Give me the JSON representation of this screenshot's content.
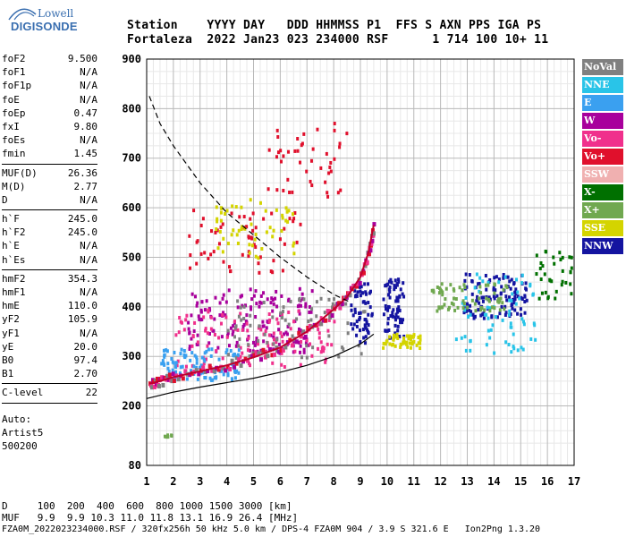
{
  "logo": {
    "line1": "Lowell",
    "line2": "DIGISONDE"
  },
  "header": {
    "line1": "Station    YYYY DAY   DDD HHMMSS P1  FFS S AXN PPS IGA PS",
    "line2": "Fortaleza  2022 Jan23 023 234000 RSF      1 714 100 10+ 11"
  },
  "params_groups": [
    [
      [
        "foF2",
        "9.500"
      ],
      [
        "foF1",
        "N/A"
      ],
      [
        "foF1p",
        "N/A"
      ],
      [
        "foE",
        "N/A"
      ],
      [
        "foEp",
        "0.47"
      ],
      [
        "fxI",
        "9.80"
      ],
      [
        "foEs",
        "N/A"
      ],
      [
        "fmin",
        "1.45"
      ]
    ],
    [
      [
        "MUF(D)",
        "26.36"
      ],
      [
        "M(D)",
        "2.77"
      ],
      [
        "D",
        "N/A"
      ]
    ],
    [
      [
        "h`F",
        "245.0"
      ],
      [
        "h`F2",
        "245.0"
      ],
      [
        "h`E",
        "N/A"
      ],
      [
        "h`Es",
        "N/A"
      ]
    ],
    [
      [
        "hmF2",
        "354.3"
      ],
      [
        "hmF1",
        "N/A"
      ],
      [
        "hmE",
        "110.0"
      ],
      [
        "yF2",
        "105.9"
      ],
      [
        "yF1",
        "N/A"
      ],
      [
        "yE",
        "20.0"
      ],
      [
        "B0",
        "97.4"
      ],
      [
        "B1",
        "2.70"
      ]
    ],
    [
      [
        "C-level",
        "22"
      ]
    ]
  ],
  "auto_lines": [
    "Auto:",
    "Artist5",
    "500200"
  ],
  "legend": [
    {
      "label": "NoVal",
      "color": "#808080"
    },
    {
      "label": "NNE",
      "color": "#29c4e8"
    },
    {
      "label": "E",
      "color": "#3aa0f0"
    },
    {
      "label": "W",
      "color": "#a8009c"
    },
    {
      "label": "Vo-",
      "color": "#f0308c"
    },
    {
      "label": "Vo+",
      "color": "#e0102c"
    },
    {
      "label": "SSW",
      "color": "#f0b0b0"
    },
    {
      "label": "X-",
      "color": "#007000"
    },
    {
      "label": "X+",
      "color": "#70a850"
    },
    {
      "label": "SSE",
      "color": "#d4d400"
    },
    {
      "label": "NNW",
      "color": "#1414a0"
    }
  ],
  "footer": {
    "line1": "D     100  200  400  600  800 1000 1500 3000 [km]",
    "line2": "MUF   9.9  9.9 10.3 11.0 11.8 13.1 16.9 26.4 [MHz]",
    "line3": "FZA0M_2022023234000.RSF / 320fx256h 50 kHz 5.0 km / DPS-4 FZA0M 904 / 3.9 S 321.6 E   Ion2Png 1.3.20"
  },
  "chart_data": {
    "type": "scatter",
    "xlim": [
      1,
      17
    ],
    "ylim": [
      80,
      900
    ],
    "x_ticks": [
      1,
      2,
      3,
      4,
      5,
      6,
      7,
      8,
      9,
      10,
      11,
      12,
      13,
      14,
      15,
      16,
      17
    ],
    "y_ticks": [
      80,
      200,
      300,
      400,
      500,
      600,
      700,
      800,
      900
    ],
    "grid": true,
    "curves": [
      {
        "name": "trace-o",
        "color": "#c0002c",
        "style": "solid",
        "x": [
          1.1,
          1.5,
          2,
          3,
          4,
          5,
          6,
          7,
          8,
          8.5,
          9,
          9.3,
          9.5
        ],
        "y": [
          245,
          250,
          258,
          270,
          282,
          298,
          318,
          350,
          395,
          420,
          460,
          510,
          565
        ]
      },
      {
        "name": "trace-lower",
        "color": "#000000",
        "style": "solid",
        "x": [
          1.0,
          2,
          3,
          4,
          5,
          6,
          7,
          8,
          9,
          9.5
        ],
        "y": [
          215,
          228,
          238,
          247,
          256,
          268,
          282,
          300,
          325,
          345
        ]
      },
      {
        "name": "profile",
        "color": "#000000",
        "style": "dashed",
        "x": [
          1.1,
          1.5,
          2,
          3,
          4,
          5,
          6,
          7,
          8,
          8.6
        ],
        "y": [
          825,
          770,
          725,
          650,
          590,
          545,
          500,
          460,
          425,
          410
        ]
      }
    ],
    "clusters": [
      {
        "color": "#1414a0",
        "x": [
          8.6,
          9.4
        ],
        "y": [
          330,
          450
        ],
        "n": 60
      },
      {
        "color": "#1414a0",
        "x": [
          9.8,
          10.6
        ],
        "y": [
          340,
          460
        ],
        "n": 70
      },
      {
        "color": "#1414a0",
        "x": [
          12.8,
          15.2
        ],
        "y": [
          380,
          470
        ],
        "n": 110
      },
      {
        "color": "#a8009c",
        "x": [
          2.5,
          7.2
        ],
        "y": [
          310,
          440
        ],
        "n": 160
      },
      {
        "color": "#f0308c",
        "x": [
          2.0,
          8.0
        ],
        "y": [
          280,
          400
        ],
        "n": 120
      },
      {
        "color": "#3aa0f0",
        "x": [
          1.5,
          4.5
        ],
        "y": [
          255,
          320
        ],
        "n": 110
      },
      {
        "color": "#29c4e8",
        "x": [
          12.5,
          15.5
        ],
        "y": [
          310,
          470
        ],
        "n": 70
      },
      {
        "color": "#d4d400",
        "x": [
          9.8,
          11.2
        ],
        "y": [
          320,
          350
        ],
        "n": 55
      },
      {
        "color": "#70a850",
        "x": [
          11.5,
          14.5
        ],
        "y": [
          395,
          450
        ],
        "n": 70
      },
      {
        "color": "#007000",
        "x": [
          15.5,
          16.9
        ],
        "y": [
          420,
          520
        ],
        "n": 35
      },
      {
        "color": "#e0102c",
        "x": [
          2.5,
          6.8
        ],
        "y": [
          470,
          600
        ],
        "n": 60
      },
      {
        "color": "#d4d400",
        "x": [
          3.5,
          6.5
        ],
        "y": [
          500,
          620
        ],
        "n": 55
      },
      {
        "color": "#e0102c",
        "x": [
          5.5,
          8.5
        ],
        "y": [
          620,
          780
        ],
        "n": 45
      },
      {
        "color": "#808080",
        "x": [
          4.0,
          9.2
        ],
        "y": [
          300,
          420
        ],
        "n": 70
      },
      {
        "color": "#70a850",
        "x": [
          1.6,
          1.9
        ],
        "y": [
          135,
          145
        ],
        "n": 6
      }
    ]
  }
}
